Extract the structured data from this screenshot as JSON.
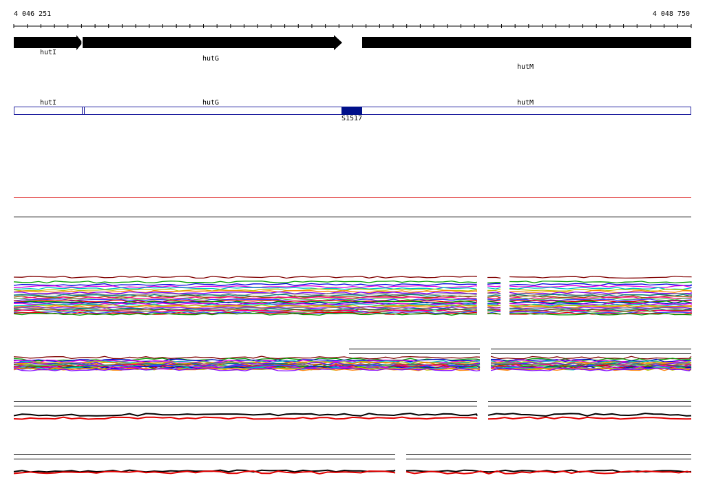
{
  "ruler": {
    "start": "4 046 251",
    "end": "4 048 750"
  },
  "genes": [
    {
      "label": "hutI"
    },
    {
      "label": "hutG"
    },
    {
      "label": "hutM"
    }
  ],
  "annotations": [
    {
      "label": "hutI"
    },
    {
      "label": "hutG"
    },
    {
      "label": "hutM"
    },
    {
      "label": "S1517"
    }
  ]
}
